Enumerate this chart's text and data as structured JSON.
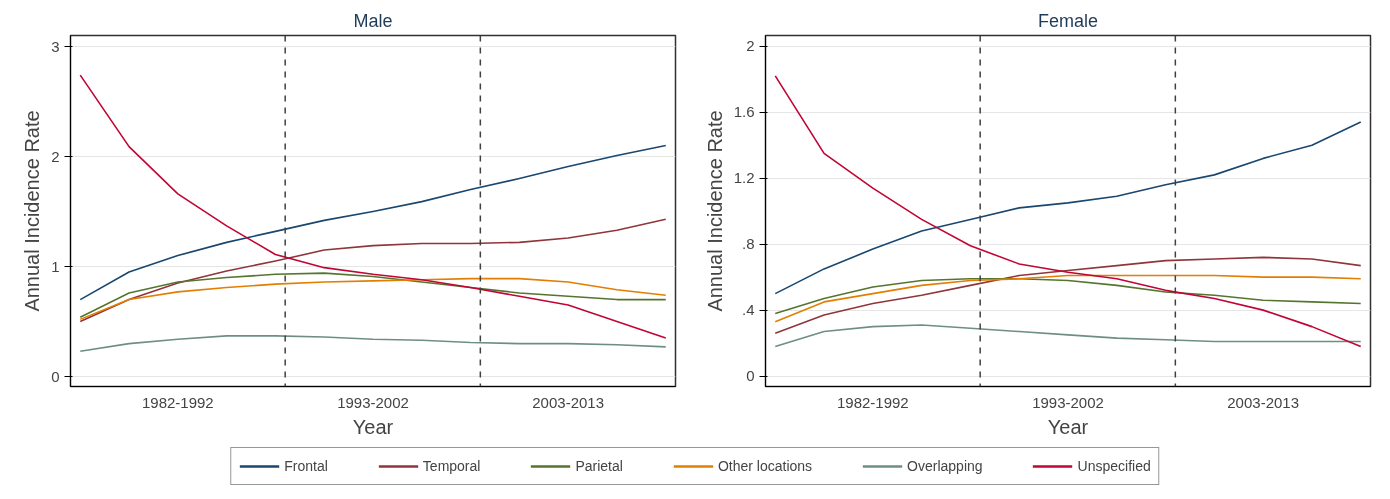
{
  "chart_data": [
    {
      "type": "line",
      "title": "Male",
      "xlabel": "Year",
      "ylabel": "Annual Incidence Rate",
      "ylim": [
        -0.09,
        3.1
      ],
      "categories": [
        null,
        null,
        "1982-1992",
        null,
        null,
        null,
        "1993-2002",
        null,
        null,
        null,
        "2003-2013",
        null,
        null
      ],
      "yticks": [
        0,
        1,
        2,
        3
      ],
      "grid": "y",
      "legend": "bottom",
      "line_style": "solid",
      "marker": "none",
      "ref_lines": [
        {
          "axis": "x",
          "line_style": "dashed",
          "color": "#404040"
        },
        {
          "axis": "x",
          "line_style": "dashed",
          "color": "#404040"
        }
      ],
      "series": [
        {
          "name": "Frontal",
          "color": "#1a476f",
          "values": [
            0.7,
            0.95,
            1.1,
            1.22,
            1.32,
            1.42,
            1.5,
            1.59,
            1.7,
            1.8,
            1.91,
            2.01,
            2.1
          ]
        },
        {
          "name": "Temporal",
          "color": "#90353b",
          "values": [
            0.5,
            0.7,
            0.85,
            0.96,
            1.05,
            1.15,
            1.19,
            1.21,
            1.21,
            1.22,
            1.26,
            1.33,
            1.43
          ]
        },
        {
          "name": "Parietal",
          "color": "#55752f",
          "values": [
            0.54,
            0.76,
            0.86,
            0.9,
            0.93,
            0.94,
            0.91,
            0.86,
            0.81,
            0.76,
            0.73,
            0.7,
            0.7
          ]
        },
        {
          "name": "Other locations",
          "color": "#e37e00",
          "values": [
            0.52,
            0.7,
            0.77,
            0.81,
            0.84,
            0.86,
            0.87,
            0.88,
            0.89,
            0.89,
            0.86,
            0.79,
            0.74
          ]
        },
        {
          "name": "Overlapping",
          "color": "#6e8e84",
          "values": [
            0.23,
            0.3,
            0.34,
            0.37,
            0.37,
            0.36,
            0.34,
            0.33,
            0.31,
            0.3,
            0.3,
            0.29,
            0.27
          ]
        },
        {
          "name": "Unspecified",
          "color": "#c10534",
          "values": [
            2.74,
            2.09,
            1.66,
            1.37,
            1.11,
            0.99,
            0.93,
            0.88,
            0.81,
            0.73,
            0.65,
            0.5,
            0.35
          ]
        }
      ]
    },
    {
      "type": "line",
      "title": "Female",
      "xlabel": "Year",
      "ylabel": "Annual Incidence Rate",
      "ylim": [
        -0.063,
        2.065
      ],
      "categories": [
        null,
        null,
        "1982-1992",
        null,
        null,
        null,
        "1993-2002",
        null,
        null,
        null,
        "2003-2013",
        null,
        null
      ],
      "yticks": [
        0,
        {
          "value": 0.4,
          "label": ".4"
        },
        {
          "value": 0.8,
          "label": ".8"
        },
        1.2,
        1.6,
        2
      ],
      "grid": "y",
      "line_style": "solid",
      "marker": "none",
      "ref_lines": [
        {
          "axis": "x",
          "line_style": "dashed",
          "color": "#404040"
        },
        {
          "axis": "x",
          "line_style": "dashed",
          "color": "#404040"
        }
      ],
      "series": [
        {
          "color": "#1a476f",
          "values": [
            0.5,
            0.65,
            0.77,
            0.88,
            0.95,
            1.02,
            1.05,
            1.09,
            1.16,
            1.22,
            1.32,
            1.4,
            1.54
          ]
        },
        {
          "color": "#90353b",
          "values": [
            0.26,
            0.37,
            0.44,
            0.49,
            0.55,
            0.61,
            0.64,
            0.67,
            0.7,
            0.71,
            0.72,
            0.71,
            0.67
          ]
        },
        {
          "color": "#55752f",
          "values": [
            0.38,
            0.47,
            0.54,
            0.58,
            0.59,
            0.59,
            0.58,
            0.55,
            0.51,
            0.49,
            0.46,
            0.45,
            0.44
          ]
        },
        {
          "color": "#e37e00",
          "values": [
            0.33,
            0.45,
            0.5,
            0.55,
            0.58,
            0.59,
            0.61,
            0.61,
            0.61,
            0.61,
            0.6,
            0.6,
            0.59
          ]
        },
        {
          "color": "#6e8e84",
          "values": [
            0.18,
            0.27,
            0.3,
            0.31,
            0.29,
            0.27,
            0.25,
            0.23,
            0.22,
            0.21,
            0.21,
            0.21,
            0.21
          ]
        },
        {
          "color": "#c10534",
          "values": [
            1.82,
            1.35,
            1.14,
            0.95,
            0.79,
            0.68,
            0.63,
            0.59,
            0.52,
            0.47,
            0.4,
            0.3,
            0.18
          ]
        }
      ]
    }
  ]
}
